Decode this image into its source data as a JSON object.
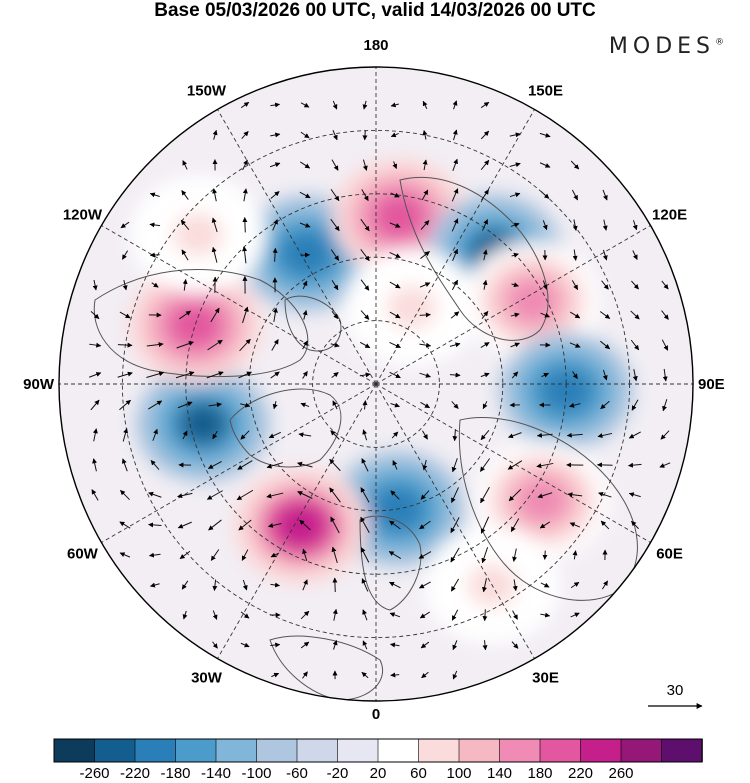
{
  "title": "Base 05/03/2026 00 UTC, valid 14/03/2026 00 UTC",
  "brand": "MODES",
  "brand_mark": "®",
  "meridians": [
    {
      "label": "180",
      "lon": 180
    },
    {
      "label": "150E",
      "lon": 150
    },
    {
      "label": "120E",
      "lon": 120
    },
    {
      "label": "90E",
      "lon": 90
    },
    {
      "label": "60E",
      "lon": 60
    },
    {
      "label": "30E",
      "lon": 30
    },
    {
      "label": "0",
      "lon": 0
    },
    {
      "label": "30W",
      "lon": -30
    },
    {
      "label": "60W",
      "lon": -60
    },
    {
      "label": "90W",
      "lon": -90
    },
    {
      "label": "120W",
      "lon": -120
    },
    {
      "label": "150W",
      "lon": -150
    }
  ],
  "reference_vector": {
    "value": "30"
  },
  "colorbar": {
    "ticks": [
      "-260",
      "-220",
      "-180",
      "-140",
      "-100",
      "-60",
      "-20",
      "20",
      "60",
      "100",
      "140",
      "180",
      "220",
      "260"
    ],
    "colors": [
      "#0d3b5c",
      "#135e8e",
      "#2a7fb8",
      "#4b9bcb",
      "#7fb6d9",
      "#aec6df",
      "#cfd7ea",
      "#e6e7f2",
      "#ffffff",
      "#fbdcdc",
      "#f6b9c4",
      "#ef8bb4",
      "#e2579f",
      "#c51f8c",
      "#951878",
      "#5e0f6e"
    ]
  },
  "anomalies": [
    {
      "lon": -152,
      "lat": 55,
      "value": -180
    },
    {
      "lon": 172,
      "lat": 50,
      "value": 200
    },
    {
      "lon": 138,
      "lat": 48,
      "value": -220
    },
    {
      "lon": 118,
      "lat": 48,
      "value": 160
    },
    {
      "lon": 88,
      "lat": 45,
      "value": -180
    },
    {
      "lon": 55,
      "lat": 42,
      "value": 160
    },
    {
      "lon": 10,
      "lat": 60,
      "value": -200
    },
    {
      "lon": -28,
      "lat": 52,
      "value": 240
    },
    {
      "lon": -77,
      "lat": 48,
      "value": -220
    },
    {
      "lon": -108,
      "lat": 45,
      "value": 200
    },
    {
      "lon": -130,
      "lat": 35,
      "value": 60
    },
    {
      "lon": 155,
      "lat": 70,
      "value": 60
    },
    {
      "lon": 30,
      "lat": 35,
      "value": 60
    }
  ]
}
